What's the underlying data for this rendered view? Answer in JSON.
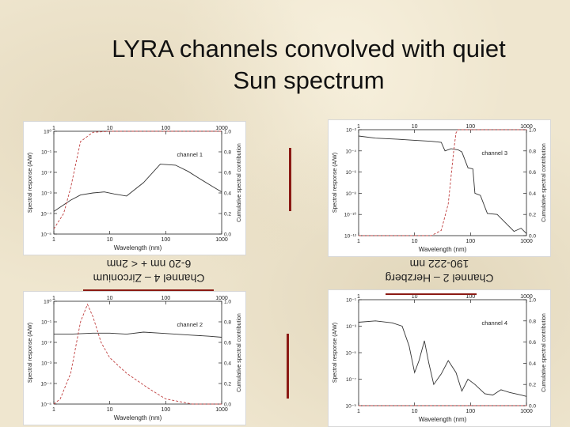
{
  "slide": {
    "title_line1": "LYRA channels convolved with quiet",
    "title_line2": "Sun spectrum"
  },
  "labels": {
    "ch4_line1": "Channel 4 – Zirconium",
    "ch4_line2": "6-20 nm + < 2nm",
    "ch2_line1": "Channel 2 – Herzberg",
    "ch2_line2": "190-222 nm"
  },
  "chart_data": [
    {
      "type": "line",
      "panel": "channel-1",
      "legend_label": "channel 1",
      "xlabel": "Wavelength (nm)",
      "ylabel": "Spectral response (A/W)",
      "y2label": "Cumulative spectral contribution",
      "x_scale": "log",
      "x_ticks": [
        "1",
        "10",
        "100",
        "1000"
      ],
      "x_ticks_top": [
        "1",
        "10",
        "100",
        "1000"
      ],
      "y_ticks": [
        "10⁻⁵",
        "10⁻⁴",
        "10⁻³",
        "10⁻²",
        "10⁻¹",
        "10⁰"
      ],
      "y2_ticks": [
        "0.0",
        "0.2",
        "0.4",
        "0.6",
        "0.8",
        "1.0"
      ],
      "series": [
        {
          "style": "solid",
          "x": [
            1,
            2,
            3,
            5,
            8,
            12,
            20,
            40,
            80,
            150,
            250,
            400,
            700,
            1000
          ],
          "logy": [
            -3.9,
            -3.35,
            -3.1,
            -3.0,
            -2.95,
            -3.05,
            -3.15,
            -2.5,
            -1.6,
            -1.65,
            -1.95,
            -2.3,
            -2.7,
            -2.95
          ]
        },
        {
          "style": "dashed",
          "x": [
            1,
            1.5,
            2,
            3,
            5,
            10,
            30,
            100,
            1000
          ],
          "cum": [
            0.05,
            0.2,
            0.45,
            0.9,
            0.99,
            1.0,
            1.0,
            1.0,
            1.0
          ]
        }
      ]
    },
    {
      "type": "line",
      "panel": "channel-3",
      "legend_label": "channel 3",
      "xlabel": "Wavelength (nm)",
      "ylabel": "Spectral response (A/W)",
      "y2label": "Cumulative spectral contribution",
      "x_scale": "log",
      "x_ticks": [
        "1",
        "10",
        "100",
        "1000"
      ],
      "x_ticks_top": [
        "1",
        "10",
        "100",
        "1000"
      ],
      "y_ticks": [
        "10⁻¹²",
        "10⁻¹⁰",
        "10⁻⁸",
        "10⁻⁶",
        "10⁻⁴",
        "10⁻²"
      ],
      "y2_ticks": [
        "0.0",
        "0.2",
        "0.4",
        "0.6",
        "0.8",
        "1.0"
      ],
      "series": [
        {
          "style": "solid",
          "x": [
            1,
            2,
            5,
            10,
            20,
            30,
            35,
            45,
            60,
            70,
            90,
            110,
            120,
            150,
            200,
            300,
            600,
            800,
            1000
          ],
          "logy": [
            -2.6,
            -2.8,
            -2.9,
            -3.0,
            -3.1,
            -3.2,
            -4.0,
            -3.8,
            -3.9,
            -4.1,
            -5.6,
            -5.7,
            -8.0,
            -8.2,
            -9.9,
            -10.0,
            -11.6,
            -11.3,
            -11.8
          ]
        },
        {
          "style": "dashed",
          "x": [
            1,
            20,
            30,
            40,
            50,
            55,
            60,
            80,
            100,
            1000
          ],
          "cum": [
            0.0,
            0.0,
            0.05,
            0.3,
            0.8,
            0.97,
            1.0,
            1.0,
            1.0,
            1.0
          ]
        }
      ]
    },
    {
      "type": "line",
      "panel": "channel-2",
      "legend_label": "channel 2",
      "xlabel": "Wavelength (nm)",
      "ylabel": "Spectral response (A/W)",
      "y2label": "Cumulative spectral contribution",
      "x_scale": "log",
      "x_ticks": [
        "1",
        "10",
        "100",
        "1000"
      ],
      "x_ticks_top": [
        "1",
        "10",
        "100",
        "1000"
      ],
      "y_ticks": [
        "10⁻⁵",
        "10⁻⁴",
        "10⁻³",
        "10⁻²",
        "10⁻¹",
        "10⁰"
      ],
      "y2_ticks": [
        "0.0",
        "0.2",
        "0.4",
        "0.6",
        "0.8",
        "1.0"
      ],
      "series": [
        {
          "style": "solid",
          "x": [
            1,
            2,
            5,
            10,
            20,
            40,
            80,
            150,
            300,
            600,
            1000
          ],
          "logy": [
            -1.6,
            -1.6,
            -1.55,
            -1.55,
            -1.6,
            -1.5,
            -1.55,
            -1.6,
            -1.65,
            -1.7,
            -1.75
          ]
        },
        {
          "style": "dashed",
          "x": [
            1,
            1.3,
            2,
            3,
            4,
            5,
            7,
            10,
            20,
            50,
            100,
            300,
            1000
          ],
          "cum": [
            0.0,
            0.05,
            0.3,
            0.8,
            0.97,
            0.85,
            0.6,
            0.45,
            0.3,
            0.15,
            0.05,
            0.0,
            0.0
          ]
        }
      ]
    },
    {
      "type": "line",
      "panel": "channel-4",
      "legend_label": "channel 4",
      "xlabel": "Wavelength (nm)",
      "ylabel": "Spectral response (A/W)",
      "y2label": "Cumulative spectral contribution",
      "x_scale": "log",
      "x_ticks": [
        "1",
        "10",
        "100",
        "1000"
      ],
      "x_ticks_top": [
        "1",
        "10",
        "100",
        "1000"
      ],
      "y_ticks": [
        "10⁻⁹",
        "10⁻⁷",
        "10⁻⁵",
        "10⁻³",
        "10⁻¹"
      ],
      "y2_ticks": [
        "0.0",
        "0.2",
        "0.4",
        "0.6",
        "0.8",
        "1.0"
      ],
      "series": [
        {
          "style": "solid",
          "x": [
            1,
            2,
            4,
            6,
            8,
            10,
            12,
            15,
            18,
            22,
            30,
            40,
            55,
            70,
            90,
            120,
            180,
            250,
            350,
            500,
            800,
            1000
          ],
          "logy": [
            -2.7,
            -2.6,
            -2.75,
            -3.0,
            -4.5,
            -6.5,
            -5.6,
            -4.1,
            -5.8,
            -7.4,
            -6.6,
            -5.6,
            -6.5,
            -7.9,
            -7.0,
            -7.4,
            -8.1,
            -8.2,
            -7.8,
            -8.0,
            -8.2,
            -8.3
          ]
        },
        {
          "style": "dashed",
          "x": [
            1,
            1000
          ],
          "cum": [
            0.0,
            0.0
          ]
        }
      ]
    }
  ]
}
